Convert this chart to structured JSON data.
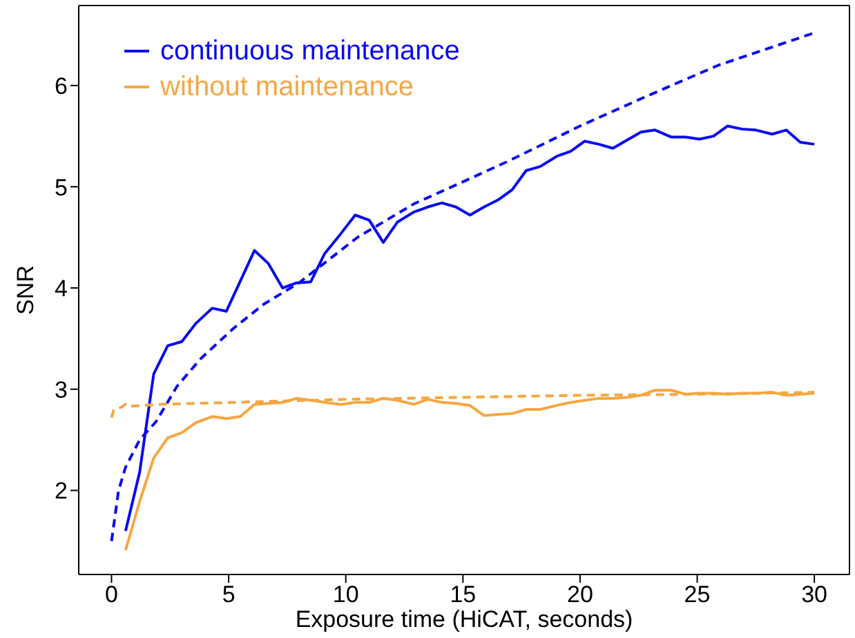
{
  "chart_data": {
    "type": "line",
    "xlabel": "Exposure time (HiCAT, seconds)",
    "ylabel": "SNR",
    "xlim": [
      -1.4,
      31.5
    ],
    "ylim": [
      1.17,
      6.79
    ],
    "xticks": [
      0,
      5,
      10,
      15,
      20,
      25,
      30
    ],
    "yticks": [
      2,
      3,
      4,
      5,
      6
    ],
    "grid": false,
    "legend": "top left",
    "marker": "none",
    "series": [
      {
        "name": "continuous maintenance",
        "color": "#0a0aee",
        "line_style": "solid",
        "x": [
          0.6,
          1.2,
          1.8,
          2.4,
          3.0,
          3.6,
          4.3,
          4.9,
          5.5,
          6.1,
          6.7,
          7.3,
          7.9,
          8.5,
          9.1,
          9.8,
          10.4,
          11.0,
          11.6,
          12.2,
          12.9,
          13.5,
          14.1,
          14.7,
          15.3,
          15.9,
          16.5,
          17.1,
          17.7,
          18.3,
          19.0,
          19.6,
          20.2,
          20.8,
          21.4,
          22.0,
          22.6,
          23.2,
          23.9,
          24.5,
          25.1,
          25.7,
          26.3,
          26.9,
          27.5,
          28.2,
          28.8,
          29.4,
          30.0
        ],
        "values": [
          1.6,
          2.18,
          3.15,
          3.43,
          3.47,
          3.65,
          3.8,
          3.77,
          4.07,
          4.37,
          4.24,
          4.0,
          4.05,
          4.06,
          4.34,
          4.54,
          4.72,
          4.67,
          4.45,
          4.65,
          4.75,
          4.8,
          4.84,
          4.8,
          4.72,
          4.8,
          4.87,
          4.97,
          5.16,
          5.2,
          5.3,
          5.35,
          5.45,
          5.42,
          5.38,
          5.46,
          5.54,
          5.56,
          5.49,
          5.49,
          5.47,
          5.5,
          5.6,
          5.57,
          5.56,
          5.52,
          5.56,
          5.44,
          5.42
        ]
      },
      {
        "name": "without maintenance",
        "color": "#f5a742",
        "line_style": "solid",
        "x": [
          0.6,
          1.2,
          1.8,
          2.4,
          3.0,
          3.6,
          4.3,
          4.9,
          5.5,
          6.1,
          6.7,
          7.3,
          7.9,
          8.5,
          9.1,
          9.8,
          10.4,
          11.0,
          11.6,
          12.2,
          12.9,
          13.5,
          14.1,
          14.7,
          15.3,
          15.9,
          16.5,
          17.1,
          17.7,
          18.3,
          19.0,
          19.6,
          20.2,
          20.8,
          21.4,
          22.0,
          22.6,
          23.2,
          23.9,
          24.5,
          25.1,
          25.7,
          26.3,
          26.9,
          27.5,
          28.2,
          28.8,
          29.4,
          30.0
        ],
        "values": [
          1.41,
          1.89,
          2.32,
          2.52,
          2.57,
          2.67,
          2.73,
          2.71,
          2.73,
          2.85,
          2.86,
          2.87,
          2.91,
          2.89,
          2.87,
          2.85,
          2.87,
          2.87,
          2.91,
          2.89,
          2.85,
          2.9,
          2.87,
          2.86,
          2.84,
          2.74,
          2.75,
          2.76,
          2.8,
          2.8,
          2.84,
          2.87,
          2.89,
          2.91,
          2.91,
          2.92,
          2.94,
          2.99,
          2.99,
          2.95,
          2.96,
          2.96,
          2.95,
          2.96,
          2.96,
          2.97,
          2.94,
          2.95,
          2.96
        ]
      },
      {
        "color": "#0a0aee",
        "line_style": "dashed",
        "x": [
          0,
          0.3,
          0.6,
          1.2,
          1.9,
          2.8,
          3.8,
          5.2,
          6.5,
          8,
          10.5,
          12.9,
          15.3,
          17,
          20,
          22.9,
          25.9,
          30
        ],
        "values": [
          1.5,
          2.0,
          2.23,
          2.5,
          2.68,
          3.03,
          3.3,
          3.6,
          3.84,
          4.05,
          4.5,
          4.83,
          5.08,
          5.26,
          5.6,
          5.9,
          6.2,
          6.52
        ]
      },
      {
        "color": "#f5a742",
        "line_style": "dashed",
        "x": [
          0,
          0.1,
          0.4,
          0.6,
          0.7,
          2,
          10,
          15,
          20,
          25,
          30
        ],
        "values": [
          2.72,
          2.8,
          2.82,
          2.85,
          2.83,
          2.85,
          2.9,
          2.92,
          2.94,
          2.95,
          2.97
        ]
      }
    ]
  }
}
